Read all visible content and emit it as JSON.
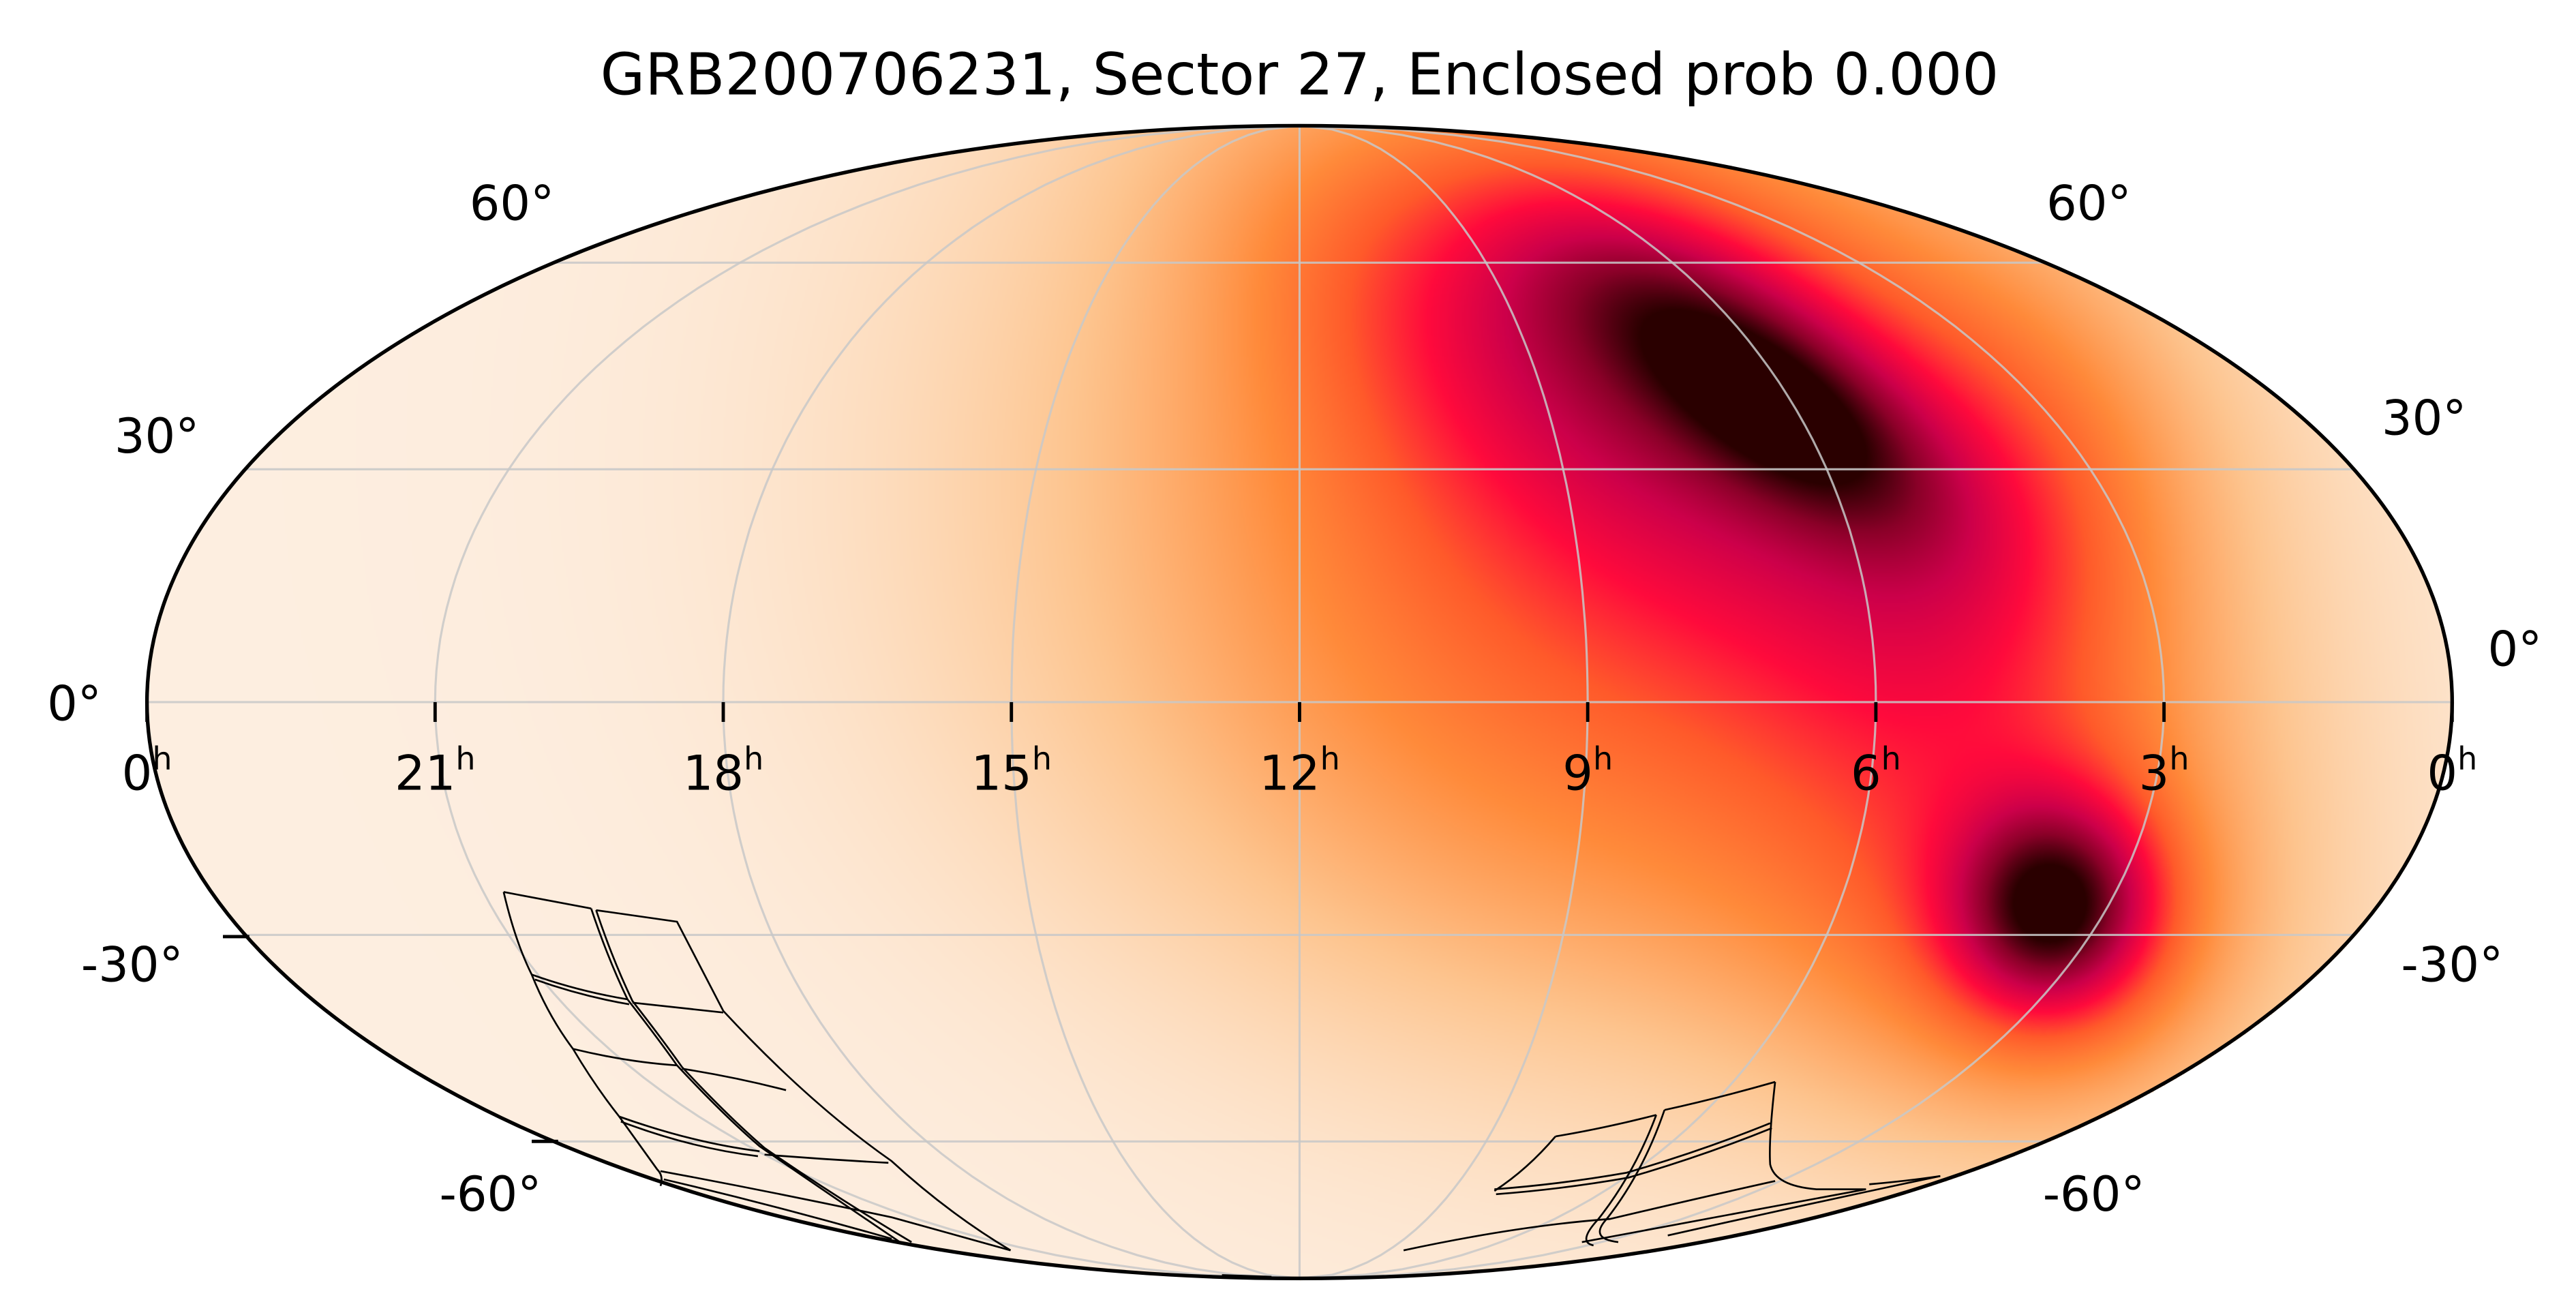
{
  "title": "GRB200706231, Sector 27, Enclosed prob 0.000",
  "chart_data": {
    "type": "heatmap",
    "projection": "mollweide",
    "title": "GRB200706231, Sector 27, Enclosed prob 0.000",
    "grid": true,
    "ra_ticks": [
      {
        "value": "0",
        "unit": "h"
      },
      {
        "value": "21",
        "unit": "h"
      },
      {
        "value": "18",
        "unit": "h"
      },
      {
        "value": "15",
        "unit": "h"
      },
      {
        "value": "12",
        "unit": "h"
      },
      {
        "value": "9",
        "unit": "h"
      },
      {
        "value": "6",
        "unit": "h"
      },
      {
        "value": "3",
        "unit": "h"
      },
      {
        "value": "0",
        "unit": "h"
      }
    ],
    "dec_ticks_left": [
      "60°",
      "30°",
      "0°",
      "-30°",
      "-60°"
    ],
    "dec_ticks_right": [
      "60°",
      "30°",
      "0°",
      "-30°",
      "-60°"
    ],
    "probability_peaks": [
      {
        "region": "primary",
        "ra_hours": 6.2,
        "dec_deg": 36
      },
      {
        "region": "secondary",
        "ra_hours": 4.3,
        "dec_deg": -28
      }
    ],
    "colormap": [
      "#fdeee0",
      "#fdc48e",
      "#ff8a3a",
      "#ff5a2a",
      "#ff0a3c",
      "#cc004a",
      "#8a0028",
      "#2a0000"
    ],
    "grid_color": "#c8c8c8",
    "footprint_color": "#000000"
  }
}
